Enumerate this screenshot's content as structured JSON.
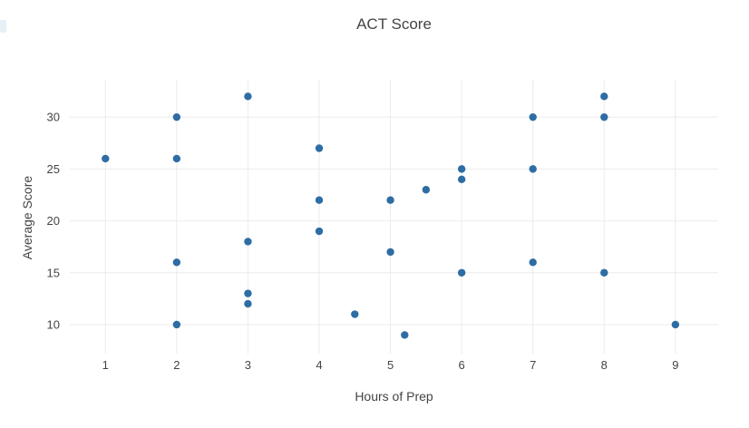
{
  "chart_data": {
    "type": "scatter",
    "title": "ACT Score",
    "xlabel": "Hours of Prep",
    "ylabel": "Average Score",
    "points": [
      [
        1,
        26
      ],
      [
        2,
        30
      ],
      [
        2,
        26
      ],
      [
        2,
        16
      ],
      [
        2,
        10
      ],
      [
        3,
        32
      ],
      [
        3,
        18
      ],
      [
        3,
        13
      ],
      [
        3,
        12
      ],
      [
        4,
        27
      ],
      [
        4,
        22
      ],
      [
        4,
        19
      ],
      [
        4.5,
        11
      ],
      [
        5,
        22
      ],
      [
        5,
        17
      ],
      [
        5.2,
        9
      ],
      [
        5.5,
        23
      ],
      [
        6,
        25
      ],
      [
        6,
        24
      ],
      [
        6,
        15
      ],
      [
        7,
        30
      ],
      [
        7,
        25
      ],
      [
        7,
        16
      ],
      [
        8,
        32
      ],
      [
        8,
        30
      ],
      [
        8,
        15
      ],
      [
        9,
        10
      ]
    ],
    "x_ticks": [
      "1",
      "2",
      "3",
      "4",
      "5",
      "6",
      "7",
      "8",
      "9"
    ],
    "x_tick_values": [
      1,
      2,
      3,
      4,
      5,
      6,
      7,
      8,
      9
    ],
    "y_ticks": [
      "10",
      "15",
      "20",
      "25",
      "30"
    ],
    "y_tick_values": [
      10,
      15,
      20,
      25,
      30
    ],
    "xlim": [
      0.5,
      9.6
    ],
    "ylim": [
      7.2,
      33.6
    ],
    "grid": true,
    "legend": "none",
    "marker_color": "#2e6da4",
    "marker_radius": 4.2,
    "grid_color": "#ebebeb",
    "text_color": "#444444",
    "background": "#ffffff"
  }
}
